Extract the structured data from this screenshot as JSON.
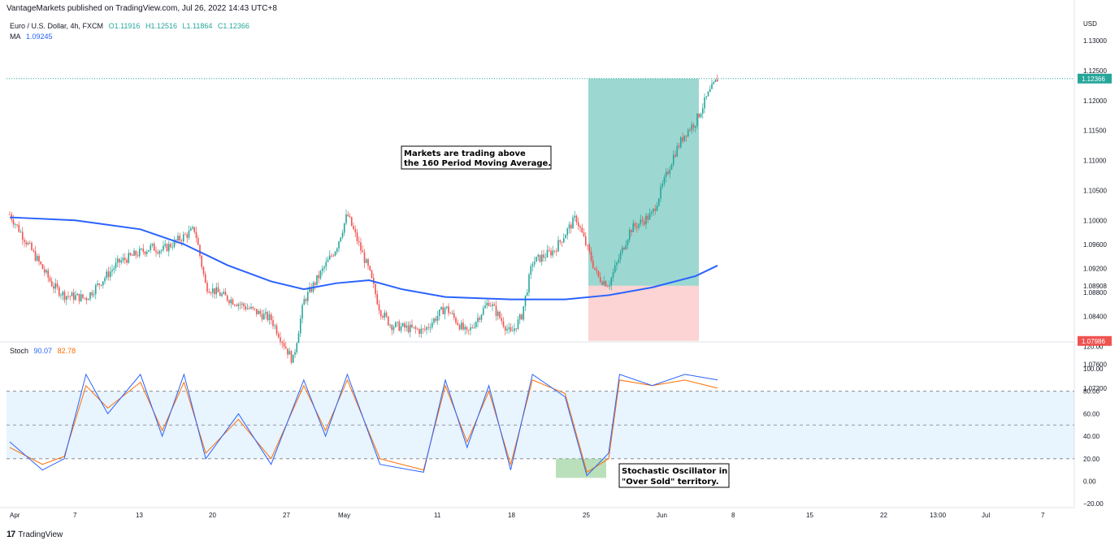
{
  "header": {
    "published": "VantageMarkets published on TradingView.com, Jul 26, 2022 14:43 UTC+8"
  },
  "legend_main": {
    "symbol": "Euro / U.S. Dollar, 4h, FXCM",
    "o": "O1.11916",
    "h": "H1.12516",
    "l": "L1.11864",
    "c": "C1.12366",
    "ma_label": "MA",
    "ma_value": "1.09245"
  },
  "legend_stoch": {
    "label": "Stoch",
    "k": "90.07",
    "d": "82.78"
  },
  "price_axis": {
    "currency": "USD",
    "ticks": [
      "1.13000",
      "1.12500",
      "1.12000",
      "1.11500",
      "1.11000",
      "1.10500",
      "1.10000",
      "1.09600",
      "1.09200",
      "1.08800",
      "1.08400",
      "1.08000",
      "1.07600",
      "1.07200"
    ],
    "last_price": "1.12366",
    "entry_price": "1.08908",
    "stop_price": "1.07986"
  },
  "stoch_axis": {
    "ticks": [
      "120.00",
      "100.00",
      "80.00",
      "60.00",
      "40.00",
      "20.00",
      "0.00",
      "−20.00"
    ]
  },
  "time_axis": [
    "Apr",
    "7",
    "13",
    "20",
    "27",
    "May",
    "11",
    "18",
    "25",
    "Jun",
    "8",
    "15",
    "22",
    "13:00",
    "Jul",
    "7"
  ],
  "annotations": {
    "ma_note": [
      "Markets are trading above",
      "the 160 Period Moving Average."
    ],
    "stoch_note": [
      "Stochastic Oscillator in",
      "\"Over Sold\" territory."
    ]
  },
  "footer": {
    "brand": "TradingView"
  },
  "colors": {
    "up": "#26a69a",
    "down": "#ef5350",
    "ma": "#2962ff",
    "k": "#2962ff",
    "d": "#ff6d00"
  },
  "chart_data": [
    {
      "type": "candlestick",
      "title": "Euro / U.S. Dollar, 4h, FXCM",
      "ylim": [
        1.07,
        1.133
      ],
      "approx_path": [
        {
          "x": "Apr 1",
          "y": 1.101
        },
        {
          "x": "Apr 5",
          "y": 1.089
        },
        {
          "x": "Apr 6",
          "y": 1.0875
        },
        {
          "x": "Apr 8",
          "y": 1.087
        },
        {
          "x": "Apr 11",
          "y": 1.093
        },
        {
          "x": "Apr 14",
          "y": 1.0955
        },
        {
          "x": "Apr 15",
          "y": 1.095
        },
        {
          "x": "Apr 18",
          "y": 1.0985
        },
        {
          "x": "Apr 19",
          "y": 1.089
        },
        {
          "x": "Apr 21",
          "y": 1.087
        },
        {
          "x": "Apr 25",
          "y": 1.0835
        },
        {
          "x": "Apr 27",
          "y": 1.0765
        },
        {
          "x": "Apr 28",
          "y": 1.0865
        },
        {
          "x": "May 1",
          "y": 1.0955
        },
        {
          "x": "May 2",
          "y": 1.101
        },
        {
          "x": "May 4",
          "y": 1.0915
        },
        {
          "x": "May 5",
          "y": 1.085
        },
        {
          "x": "May 6",
          "y": 1.0825
        },
        {
          "x": "May 9",
          "y": 1.0815
        },
        {
          "x": "May 11",
          "y": 1.0855
        },
        {
          "x": "May 13",
          "y": 1.081
        },
        {
          "x": "May 15",
          "y": 1.0865
        },
        {
          "x": "May 17",
          "y": 1.081
        },
        {
          "x": "May 18",
          "y": 1.084
        },
        {
          "x": "May 19",
          "y": 1.093
        },
        {
          "x": "May 21",
          "y": 1.095
        },
        {
          "x": "May 23",
          "y": 1.1005
        },
        {
          "x": "May 25",
          "y": 1.0905
        },
        {
          "x": "May 26",
          "y": 1.0893
        },
        {
          "x": "May 28",
          "y": 1.0985
        },
        {
          "x": "May 30",
          "y": 1.101
        },
        {
          "x": "Jun 1",
          "y": 1.111
        },
        {
          "x": "Jun 2",
          "y": 1.1145
        },
        {
          "x": "Jun 3",
          "y": 1.1165
        },
        {
          "x": "Jun 4",
          "y": 1.1205
        },
        {
          "x": "Jun 5",
          "y": 1.12366
        }
      ],
      "ma_series": {
        "name": "MA",
        "points": [
          {
            "x": "Apr 1",
            "y": 1.1005
          },
          {
            "x": "Apr 7",
            "y": 1.1
          },
          {
            "x": "Apr 13",
            "y": 1.0985
          },
          {
            "x": "Apr 17",
            "y": 1.096
          },
          {
            "x": "Apr 21",
            "y": 1.0925
          },
          {
            "x": "Apr 25",
            "y": 1.0898
          },
          {
            "x": "Apr 28",
            "y": 1.0885
          },
          {
            "x": "May 1",
            "y": 1.0895
          },
          {
            "x": "May 4",
            "y": 1.09
          },
          {
            "x": "May 7",
            "y": 1.0885
          },
          {
            "x": "May 11",
            "y": 1.0872
          },
          {
            "x": "May 17",
            "y": 1.0868
          },
          {
            "x": "May 22",
            "y": 1.0868
          },
          {
            "x": "May 26",
            "y": 1.0875
          },
          {
            "x": "May 30",
            "y": 1.0888
          },
          {
            "x": "Jun 3",
            "y": 1.0907
          },
          {
            "x": "Jun 5",
            "y": 1.09245
          }
        ]
      },
      "position": {
        "entry": 1.08908,
        "target": 1.12366,
        "stop": 1.07986
      }
    },
    {
      "type": "line",
      "title": "Stoch",
      "ylim": [
        -20,
        120
      ],
      "bands": {
        "upper": 80,
        "middle": 50,
        "lower": 20
      },
      "series": [
        {
          "name": "90.07",
          "points": [
            {
              "x": "Apr 1",
              "y": 35
            },
            {
              "x": "Apr 4",
              "y": 10
            },
            {
              "x": "Apr 6",
              "y": 20
            },
            {
              "x": "Apr 8",
              "y": 95
            },
            {
              "x": "Apr 10",
              "y": 60
            },
            {
              "x": "Apr 13",
              "y": 95
            },
            {
              "x": "Apr 15",
              "y": 40
            },
            {
              "x": "Apr 17",
              "y": 95
            },
            {
              "x": "Apr 19",
              "y": 20
            },
            {
              "x": "Apr 22",
              "y": 60
            },
            {
              "x": "Apr 25",
              "y": 15
            },
            {
              "x": "Apr 28",
              "y": 90
            },
            {
              "x": "Apr 30",
              "y": 40
            },
            {
              "x": "May 2",
              "y": 95
            },
            {
              "x": "May 5",
              "y": 15
            },
            {
              "x": "May 9",
              "y": 8
            },
            {
              "x": "May 11",
              "y": 90
            },
            {
              "x": "May 13",
              "y": 30
            },
            {
              "x": "May 15",
              "y": 85
            },
            {
              "x": "May 17",
              "y": 10
            },
            {
              "x": "May 19",
              "y": 95
            },
            {
              "x": "May 22",
              "y": 75
            },
            {
              "x": "May 24",
              "y": 5
            },
            {
              "x": "May 26",
              "y": 25
            },
            {
              "x": "May 27",
              "y": 95
            },
            {
              "x": "May 30",
              "y": 85
            },
            {
              "x": "Jun 2",
              "y": 95
            },
            {
              "x": "Jun 5",
              "y": 90.07
            }
          ]
        },
        {
          "name": "82.78",
          "points": [
            {
              "x": "Apr 1",
              "y": 30
            },
            {
              "x": "Apr 4",
              "y": 15
            },
            {
              "x": "Apr 6",
              "y": 22
            },
            {
              "x": "Apr 8",
              "y": 85
            },
            {
              "x": "Apr 10",
              "y": 65
            },
            {
              "x": "Apr 13",
              "y": 88
            },
            {
              "x": "Apr 15",
              "y": 45
            },
            {
              "x": "Apr 17",
              "y": 88
            },
            {
              "x": "Apr 19",
              "y": 25
            },
            {
              "x": "Apr 22",
              "y": 55
            },
            {
              "x": "Apr 25",
              "y": 20
            },
            {
              "x": "Apr 28",
              "y": 85
            },
            {
              "x": "Apr 30",
              "y": 45
            },
            {
              "x": "May 2",
              "y": 90
            },
            {
              "x": "May 5",
              "y": 20
            },
            {
              "x": "May 9",
              "y": 10
            },
            {
              "x": "May 11",
              "y": 85
            },
            {
              "x": "May 13",
              "y": 35
            },
            {
              "x": "May 15",
              "y": 80
            },
            {
              "x": "May 17",
              "y": 15
            },
            {
              "x": "May 19",
              "y": 90
            },
            {
              "x": "May 22",
              "y": 78
            },
            {
              "x": "May 24",
              "y": 8
            },
            {
              "x": "May 26",
              "y": 20
            },
            {
              "x": "May 27",
              "y": 90
            },
            {
              "x": "May 30",
              "y": 85
            },
            {
              "x": "Jun 2",
              "y": 90
            },
            {
              "x": "Jun 5",
              "y": 82.78
            }
          ]
        }
      ]
    }
  ]
}
